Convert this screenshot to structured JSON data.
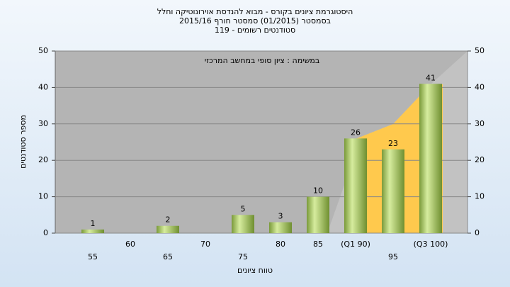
{
  "chart_data": {
    "type": "bar",
    "title": "היסטוגרמת ציונים בקורס - מבוא להנדסת אוירונוטיקה וחלל",
    "subtitle": "בסמסטר  (01/2015)  סמסטר חורף 2015/16",
    "subtitle2": "סטודנטים רשומים - 119",
    "annotation": "במשימה : ציון סופי במחשב המרכזי",
    "y_label": "מספר סטודנטים",
    "x_label": "טווח ציונים",
    "categories": [
      "55",
      "60",
      "65",
      "70",
      "75",
      "80",
      "85",
      "(Q1 90)",
      "95",
      "(Q3 100)"
    ],
    "values": [
      1,
      0,
      2,
      0,
      5,
      3,
      10,
      26,
      23,
      41
    ],
    "color": "#9bbb59",
    "ylim": [
      0,
      50
    ],
    "yticks": [
      0,
      10,
      20,
      30,
      40,
      50
    ],
    "grid": true
  }
}
